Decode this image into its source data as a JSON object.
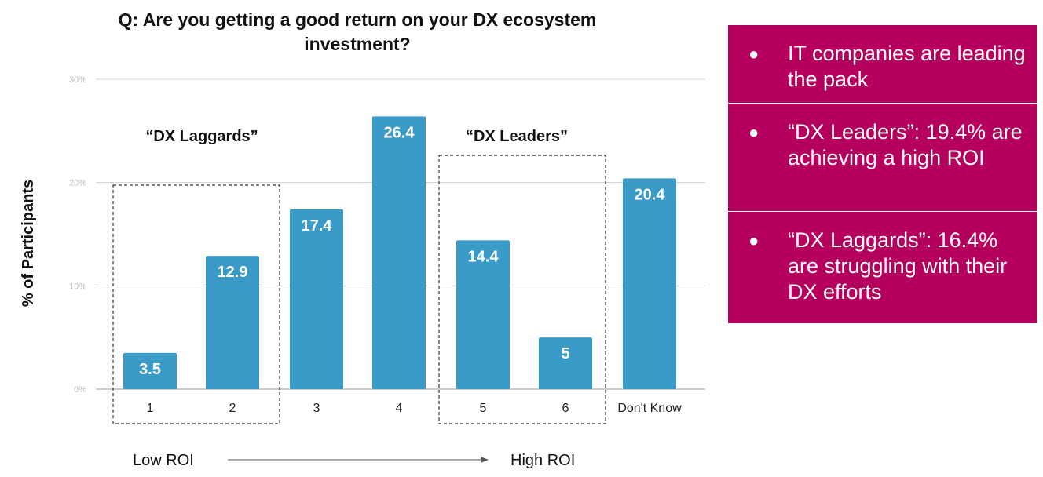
{
  "chart_data": {
    "type": "bar",
    "title": "Q: Are you getting a good return on your DX ecosystem investment?",
    "ylabel": "% of Participants",
    "ylim": [
      0,
      30
    ],
    "yticks": [
      "0%",
      "10%",
      "20%",
      "30%"
    ],
    "categories": [
      "1",
      "2",
      "3",
      "4",
      "5",
      "6",
      "Don't Know"
    ],
    "values": [
      3.5,
      12.9,
      17.4,
      26.4,
      14.4,
      5,
      20.4
    ],
    "value_labels": [
      "3.5",
      "12.9",
      "17.4",
      "26.4",
      "14.4",
      "5",
      "20.4"
    ],
    "bar_color": "#3a9bc9",
    "grid": true,
    "annotations": {
      "laggards": "“DX Laggards”",
      "leaders": "“DX Leaders”"
    },
    "scale": {
      "low": "Low ROI",
      "high": "High ROI"
    }
  },
  "panel": {
    "color": "#b5005e",
    "items": [
      "IT companies are leading the pack",
      "“DX Leaders”: 19.4% are achieving a high ROI",
      "“DX Laggards”: 16.4% are struggling with their DX efforts"
    ]
  }
}
